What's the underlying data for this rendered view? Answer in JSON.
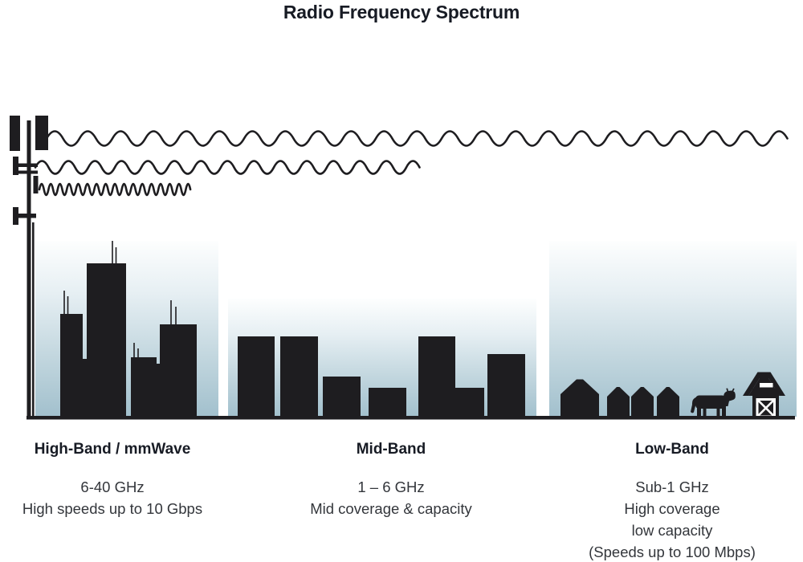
{
  "title": "Radio Frequency Spectrum",
  "bands": [
    {
      "name": "High-Band / mmWave",
      "details": [
        "6-40 GHz",
        "High speeds up to 10 Gbps"
      ]
    },
    {
      "name": "Mid-Band",
      "details": [
        "1 – 6 GHz",
        "Mid coverage & capacity"
      ]
    },
    {
      "name": "Low-Band",
      "details": [
        "Sub-1 GHz",
        "High coverage",
        "low capacity",
        "(Speeds up to 100 Mbps)"
      ]
    }
  ],
  "icons": {
    "cell-tower-icon": "antenna mast silhouette",
    "low-band-wave-icon": "long-wavelength sine wave",
    "mid-band-wave-icon": "medium-wavelength sine wave",
    "high-band-wave-icon": "short-wavelength sine wave",
    "city-skyline-icon": "tall buildings silhouette",
    "town-skyline-icon": "mid-rise buildings silhouette",
    "house-icon": "house silhouette",
    "cow-icon": "cow silhouette",
    "barn-icon": "barn with crossed door silhouette"
  },
  "colors": {
    "silhouette": "#1e1d20",
    "sky_top": "#fdfefe",
    "sky_bottom": "#a2c0cd",
    "title_text": "#171b24",
    "body_text": "#33363b"
  }
}
